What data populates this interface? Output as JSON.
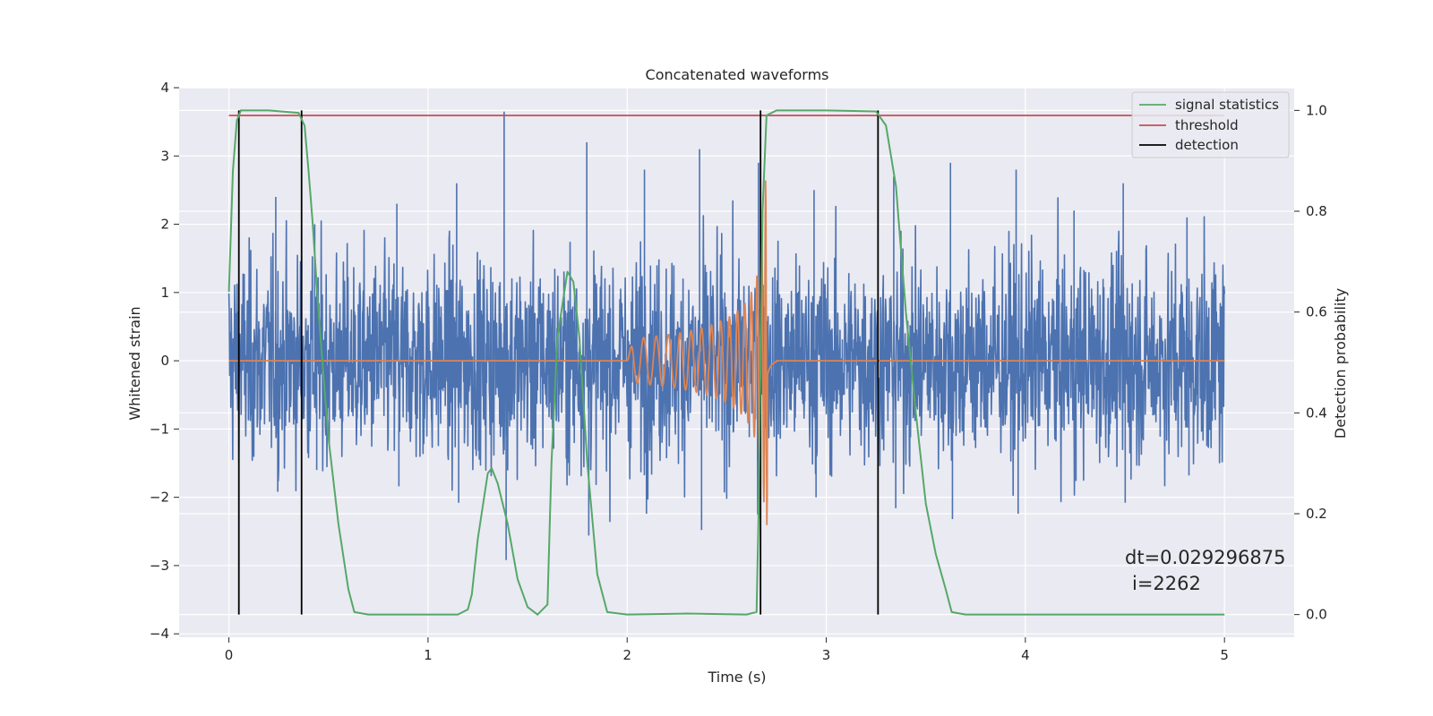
{
  "chart_data": {
    "type": "line",
    "title": "Concatenated waveforms",
    "xlabel": "Time (s)",
    "ylabel": "Whitened strain",
    "y2label": "Detection probability",
    "xlim": [
      -0.25,
      5.35
    ],
    "ylim": [
      -4.05,
      4.0
    ],
    "y2lim": [
      -0.045,
      1.045
    ],
    "x_ticks": [
      0,
      1,
      2,
      3,
      4,
      5
    ],
    "y_ticks": [
      -4,
      -3,
      -2,
      -1,
      0,
      1,
      2,
      3,
      4
    ],
    "y2_ticks": [
      "0.0",
      "0.2",
      "0.4",
      "0.6",
      "0.8",
      "1.0"
    ],
    "grid": true,
    "legend_position": "top-right",
    "series": [
      {
        "name": "",
        "axis": "left",
        "color": "#4c72b0",
        "description_kind": "noise",
        "x_range": [
          0,
          5
        ],
        "amplitude": 1.0,
        "peak_values": [
          2.4,
          2.0,
          2.3,
          2.6,
          3.65,
          3.2,
          2.8,
          3.1,
          2.9,
          2.5,
          2.7,
          2.9,
          2.8,
          2.2,
          2.6,
          2.1
        ]
      },
      {
        "name": "",
        "axis": "left",
        "color": "#dd8452",
        "description_kind": "chirp",
        "chirp_start": 2.0,
        "chirp_merger": 2.7,
        "chirp_peak": 2.8
      },
      {
        "name": "signal statistics",
        "axis": "right",
        "color": "#55a868",
        "x": [
          0.0,
          0.02,
          0.04,
          0.06,
          0.1,
          0.2,
          0.35,
          0.38,
          0.4,
          0.42,
          0.45,
          0.5,
          0.55,
          0.6,
          0.63,
          0.7,
          1.0,
          1.15,
          1.2,
          1.22,
          1.25,
          1.3,
          1.32,
          1.35,
          1.4,
          1.45,
          1.5,
          1.55,
          1.6,
          1.62,
          1.65,
          1.7,
          1.73,
          1.76,
          1.8,
          1.85,
          1.9,
          2.0,
          2.3,
          2.6,
          2.65,
          2.66,
          2.68,
          2.7,
          2.75,
          3.0,
          3.25,
          3.3,
          3.35,
          3.4,
          3.45,
          3.5,
          3.55,
          3.6,
          3.63,
          3.7,
          4.0,
          4.5,
          5.0
        ],
        "values": [
          0.64,
          0.88,
          0.98,
          1.0,
          1.0,
          1.0,
          0.995,
          0.97,
          0.88,
          0.78,
          0.6,
          0.35,
          0.18,
          0.05,
          0.005,
          0.0,
          0.0,
          0.0,
          0.01,
          0.04,
          0.15,
          0.28,
          0.29,
          0.26,
          0.18,
          0.07,
          0.015,
          0.0,
          0.02,
          0.3,
          0.55,
          0.68,
          0.66,
          0.55,
          0.3,
          0.08,
          0.005,
          0.0,
          0.002,
          0.0,
          0.005,
          0.2,
          0.8,
          0.99,
          1.0,
          1.0,
          0.998,
          0.97,
          0.85,
          0.6,
          0.4,
          0.22,
          0.12,
          0.05,
          0.005,
          0.0,
          0.0,
          0.0,
          0.0
        ]
      },
      {
        "name": "threshold",
        "axis": "right",
        "color": "#c44e52",
        "x": [
          0,
          5
        ],
        "values": [
          0.99,
          0.99
        ]
      },
      {
        "name": "detection",
        "axis": "right",
        "color": "#000000",
        "vlines": [
          0.05,
          0.365,
          2.67,
          3.26
        ],
        "vline_range": [
          0,
          1
        ]
      }
    ],
    "annotations": [
      "dt=0.029296875",
      "i=2262"
    ]
  }
}
